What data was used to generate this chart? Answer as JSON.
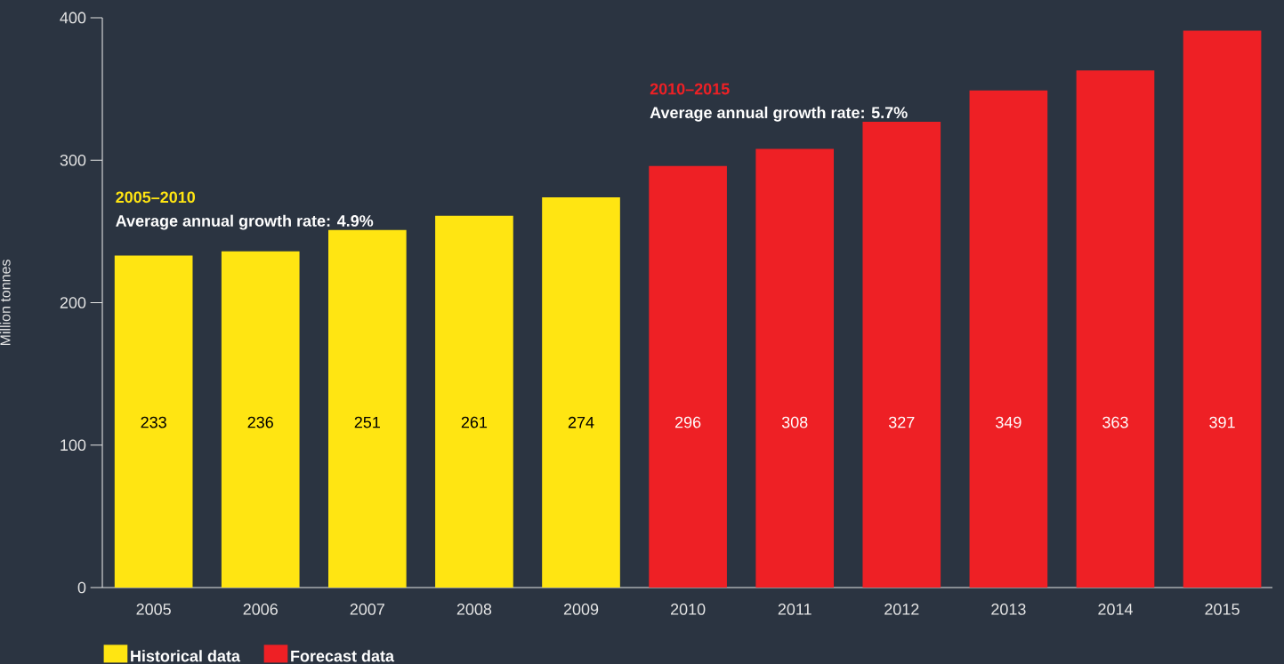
{
  "chart_data": {
    "type": "bar",
    "ylabel": "Million tonnes",
    "categories": [
      "2005",
      "2006",
      "2007",
      "2008",
      "2009",
      "2010",
      "2011",
      "2012",
      "2013",
      "2014",
      "2015"
    ],
    "series": [
      {
        "name": "Historical data",
        "color": "#ffe512",
        "values": [
          233,
          236,
          251,
          261,
          274,
          null,
          null,
          null,
          null,
          null,
          null
        ]
      },
      {
        "name": "Forecast data",
        "color": "#ee2025",
        "values": [
          null,
          null,
          null,
          null,
          null,
          296,
          308,
          327,
          349,
          363,
          391
        ]
      }
    ],
    "ylim": [
      0,
      400
    ],
    "yticks": [
      0,
      100,
      200,
      300,
      400
    ],
    "grid": false,
    "legend": "bottom left",
    "data_labels": true,
    "annotations": [
      "2005–2010",
      "Average annual growth rate: 4.9%",
      "2010–2015",
      "Average annual growth rate: 5.7%"
    ]
  }
}
